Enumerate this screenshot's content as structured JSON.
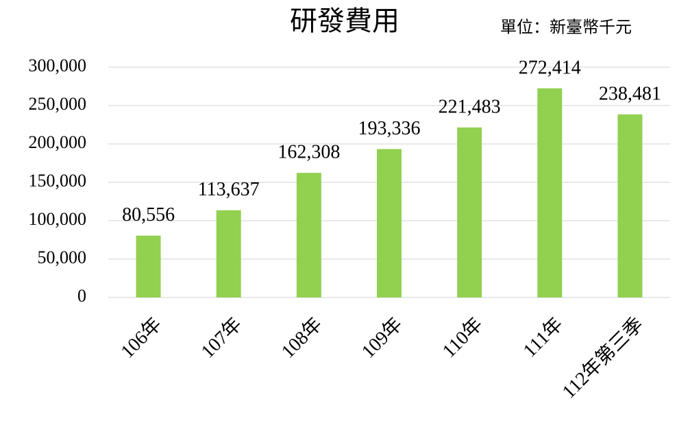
{
  "chart_data": {
    "type": "bar",
    "title": "研發費用",
    "subtitle": "單位：新臺幣千元",
    "categories": [
      "106年",
      "107年",
      "108年",
      "109年",
      "110年",
      "111年",
      "112年第三季"
    ],
    "values": [
      80556,
      113637,
      162308,
      193336,
      221483,
      272414,
      238481
    ],
    "value_labels": [
      "80,556",
      "113,637",
      "162,308",
      "193,336",
      "221,483",
      "272,414",
      "238,481"
    ],
    "color": "#92d050",
    "ylim": [
      0,
      300000
    ],
    "yticks": [
      0,
      {
        "value": 50000,
        "label": "50,000"
      },
      {
        "value": 100000,
        "label": "100,000"
      },
      {
        "value": 150000,
        "label": "150,000"
      },
      {
        "value": 200000,
        "label": "200,000"
      },
      {
        "value": 250000,
        "label": "250,000"
      },
      {
        "value": 300000,
        "label": "300,000"
      }
    ],
    "grid": true
  }
}
